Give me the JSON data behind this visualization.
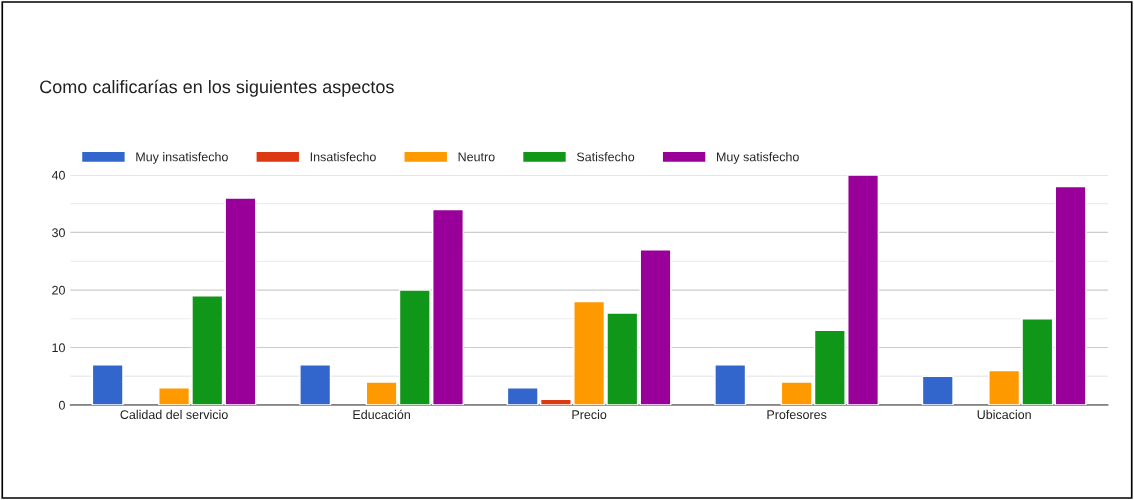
{
  "chart_data": {
    "type": "bar",
    "title": "Como calificarías en los siguientes aspectos",
    "categories": [
      "Calidad del servicio",
      "Educación",
      "Precio",
      "Profesores",
      "Ubicacion"
    ],
    "series": [
      {
        "name": "Muy insatisfecho",
        "color": "#3366cc",
        "values": [
          7,
          7,
          3,
          7,
          5
        ]
      },
      {
        "name": "Insatisfecho",
        "color": "#dc3912",
        "values": [
          null,
          null,
          1,
          null,
          null
        ]
      },
      {
        "name": "Neutro",
        "color": "#ff9900",
        "values": [
          3,
          4,
          18,
          4,
          6
        ]
      },
      {
        "name": "Satisfecho",
        "color": "#109618",
        "values": [
          19,
          20,
          16,
          13,
          15
        ]
      },
      {
        "name": "Muy satisfecho",
        "color": "#990099",
        "values": [
          36,
          34,
          27,
          40,
          38
        ]
      }
    ],
    "ylim": [
      0,
      40
    ],
    "yticks": [
      0,
      {
        "value": 5,
        "label": null
      },
      10,
      {
        "value": 15,
        "label": null
      },
      20,
      {
        "value": 25,
        "label": null
      },
      30,
      {
        "value": 35,
        "label": null
      },
      40
    ],
    "grid": "y",
    "legend": "top left"
  }
}
